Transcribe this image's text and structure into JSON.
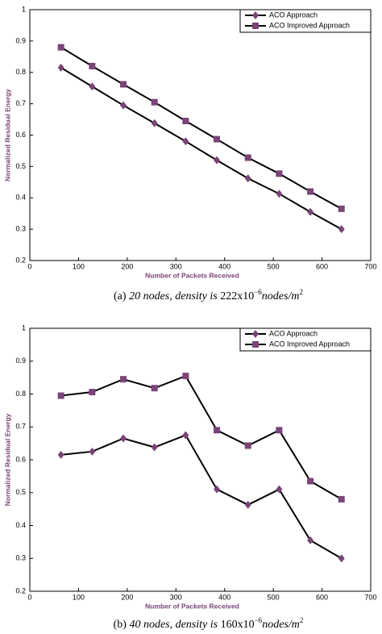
{
  "chart_data": [
    {
      "type": "line",
      "xlabel": "Number of Packets Received",
      "ylabel": "Normalized Residual Energy",
      "x": [
        64,
        128,
        192,
        256,
        320,
        384,
        448,
        512,
        576,
        640
      ],
      "series": [
        {
          "name": "ACO Approach",
          "color": "#7a4478",
          "marker": "diamond",
          "values": [
            0.815,
            0.755,
            0.695,
            0.638,
            0.58,
            0.52,
            0.462,
            0.413,
            0.355,
            0.3
          ]
        },
        {
          "name": "ACO Improved Approach",
          "color": "#7a4478",
          "marker": "square",
          "values": [
            0.88,
            0.82,
            0.762,
            0.705,
            0.645,
            0.587,
            0.528,
            0.477,
            0.42,
            0.365
          ]
        }
      ],
      "xlim": [
        0,
        700
      ],
      "xticks": [
        0,
        100,
        200,
        300,
        400,
        500,
        600,
        700
      ],
      "ylim": [
        0.2,
        1
      ],
      "yticks": [
        0.2,
        0.3,
        0.4,
        0.5,
        0.6,
        0.7,
        0.8,
        0.9,
        1
      ],
      "legend": "upper right",
      "caption": {
        "label": "(a)",
        "text": "20 nodes, density is",
        "number": "222x10",
        "exp": "−6",
        "unit": "nodes/m",
        "unit_exp": "2"
      }
    },
    {
      "type": "line",
      "xlabel": "Number of Packets Received",
      "ylabel": "Normalized Residual Energy",
      "x": [
        64,
        128,
        192,
        256,
        320,
        384,
        448,
        512,
        576,
        640
      ],
      "series": [
        {
          "name": "ACO Approach",
          "color": "#7a4478",
          "marker": "diamond",
          "values": [
            0.615,
            0.625,
            0.665,
            0.638,
            0.675,
            0.51,
            0.463,
            0.51,
            0.355,
            0.3
          ]
        },
        {
          "name": "ACO Improved Approach",
          "color": "#7a4478",
          "marker": "square",
          "values": [
            0.795,
            0.806,
            0.845,
            0.818,
            0.855,
            0.69,
            0.643,
            0.69,
            0.535,
            0.48
          ]
        }
      ],
      "xlim": [
        0,
        700
      ],
      "xticks": [
        0,
        100,
        200,
        300,
        400,
        500,
        600,
        700
      ],
      "ylim": [
        0.2,
        1
      ],
      "yticks": [
        0.2,
        0.3,
        0.4,
        0.5,
        0.6,
        0.7,
        0.8,
        0.9,
        1
      ],
      "legend": "upper right",
      "caption": {
        "label": "(b)",
        "text": "40 nodes, density is",
        "number": "160x10",
        "exp": "−6",
        "unit": "nodes/m",
        "unit_exp": "2"
      }
    }
  ]
}
